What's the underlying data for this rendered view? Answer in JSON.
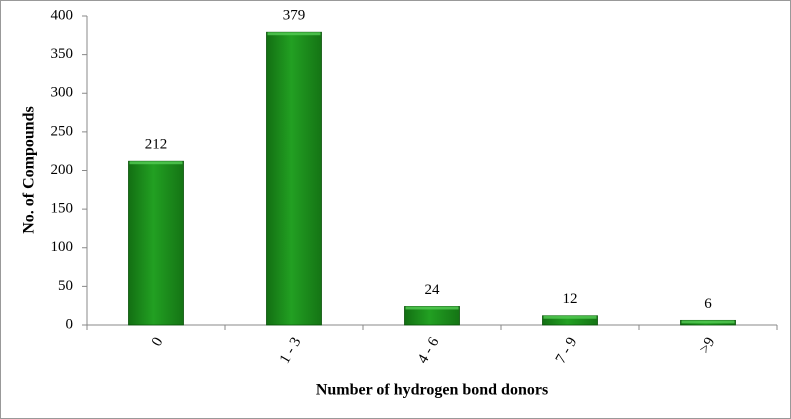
{
  "chart_data": {
    "type": "bar",
    "x_label": "Number of hydrogen bond donors",
    "y_label": "No. of Compounds",
    "categories": [
      "0",
      "1 - 3",
      "4 - 6",
      "7 - 9",
      ">9"
    ],
    "values": [
      212,
      379,
      24,
      12,
      6
    ],
    "color": "#22a022",
    "ylim": [
      0,
      400
    ],
    "yticks": [
      0,
      50,
      100,
      150,
      200,
      250,
      300,
      350,
      400
    ],
    "grid": false
  }
}
